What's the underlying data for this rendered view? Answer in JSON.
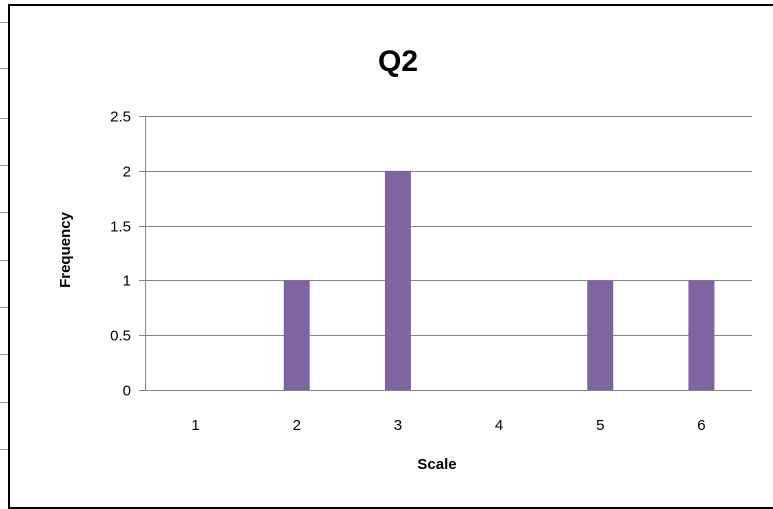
{
  "chart_data": {
    "type": "bar",
    "title": "Q2",
    "xlabel": "Scale",
    "ylabel": "Frequency",
    "categories": [
      "1",
      "2",
      "3",
      "4",
      "5",
      "6"
    ],
    "values": [
      0,
      1,
      2,
      0,
      1,
      1
    ],
    "ylim": [
      0,
      2.5
    ],
    "yticks": [
      "0",
      "0.5",
      "1",
      "1.5",
      "2",
      "2.5"
    ],
    "grid": true,
    "legend": "none",
    "colors": {
      "bar": "#8064A2",
      "grid": "#868686",
      "text": "#000000"
    }
  }
}
